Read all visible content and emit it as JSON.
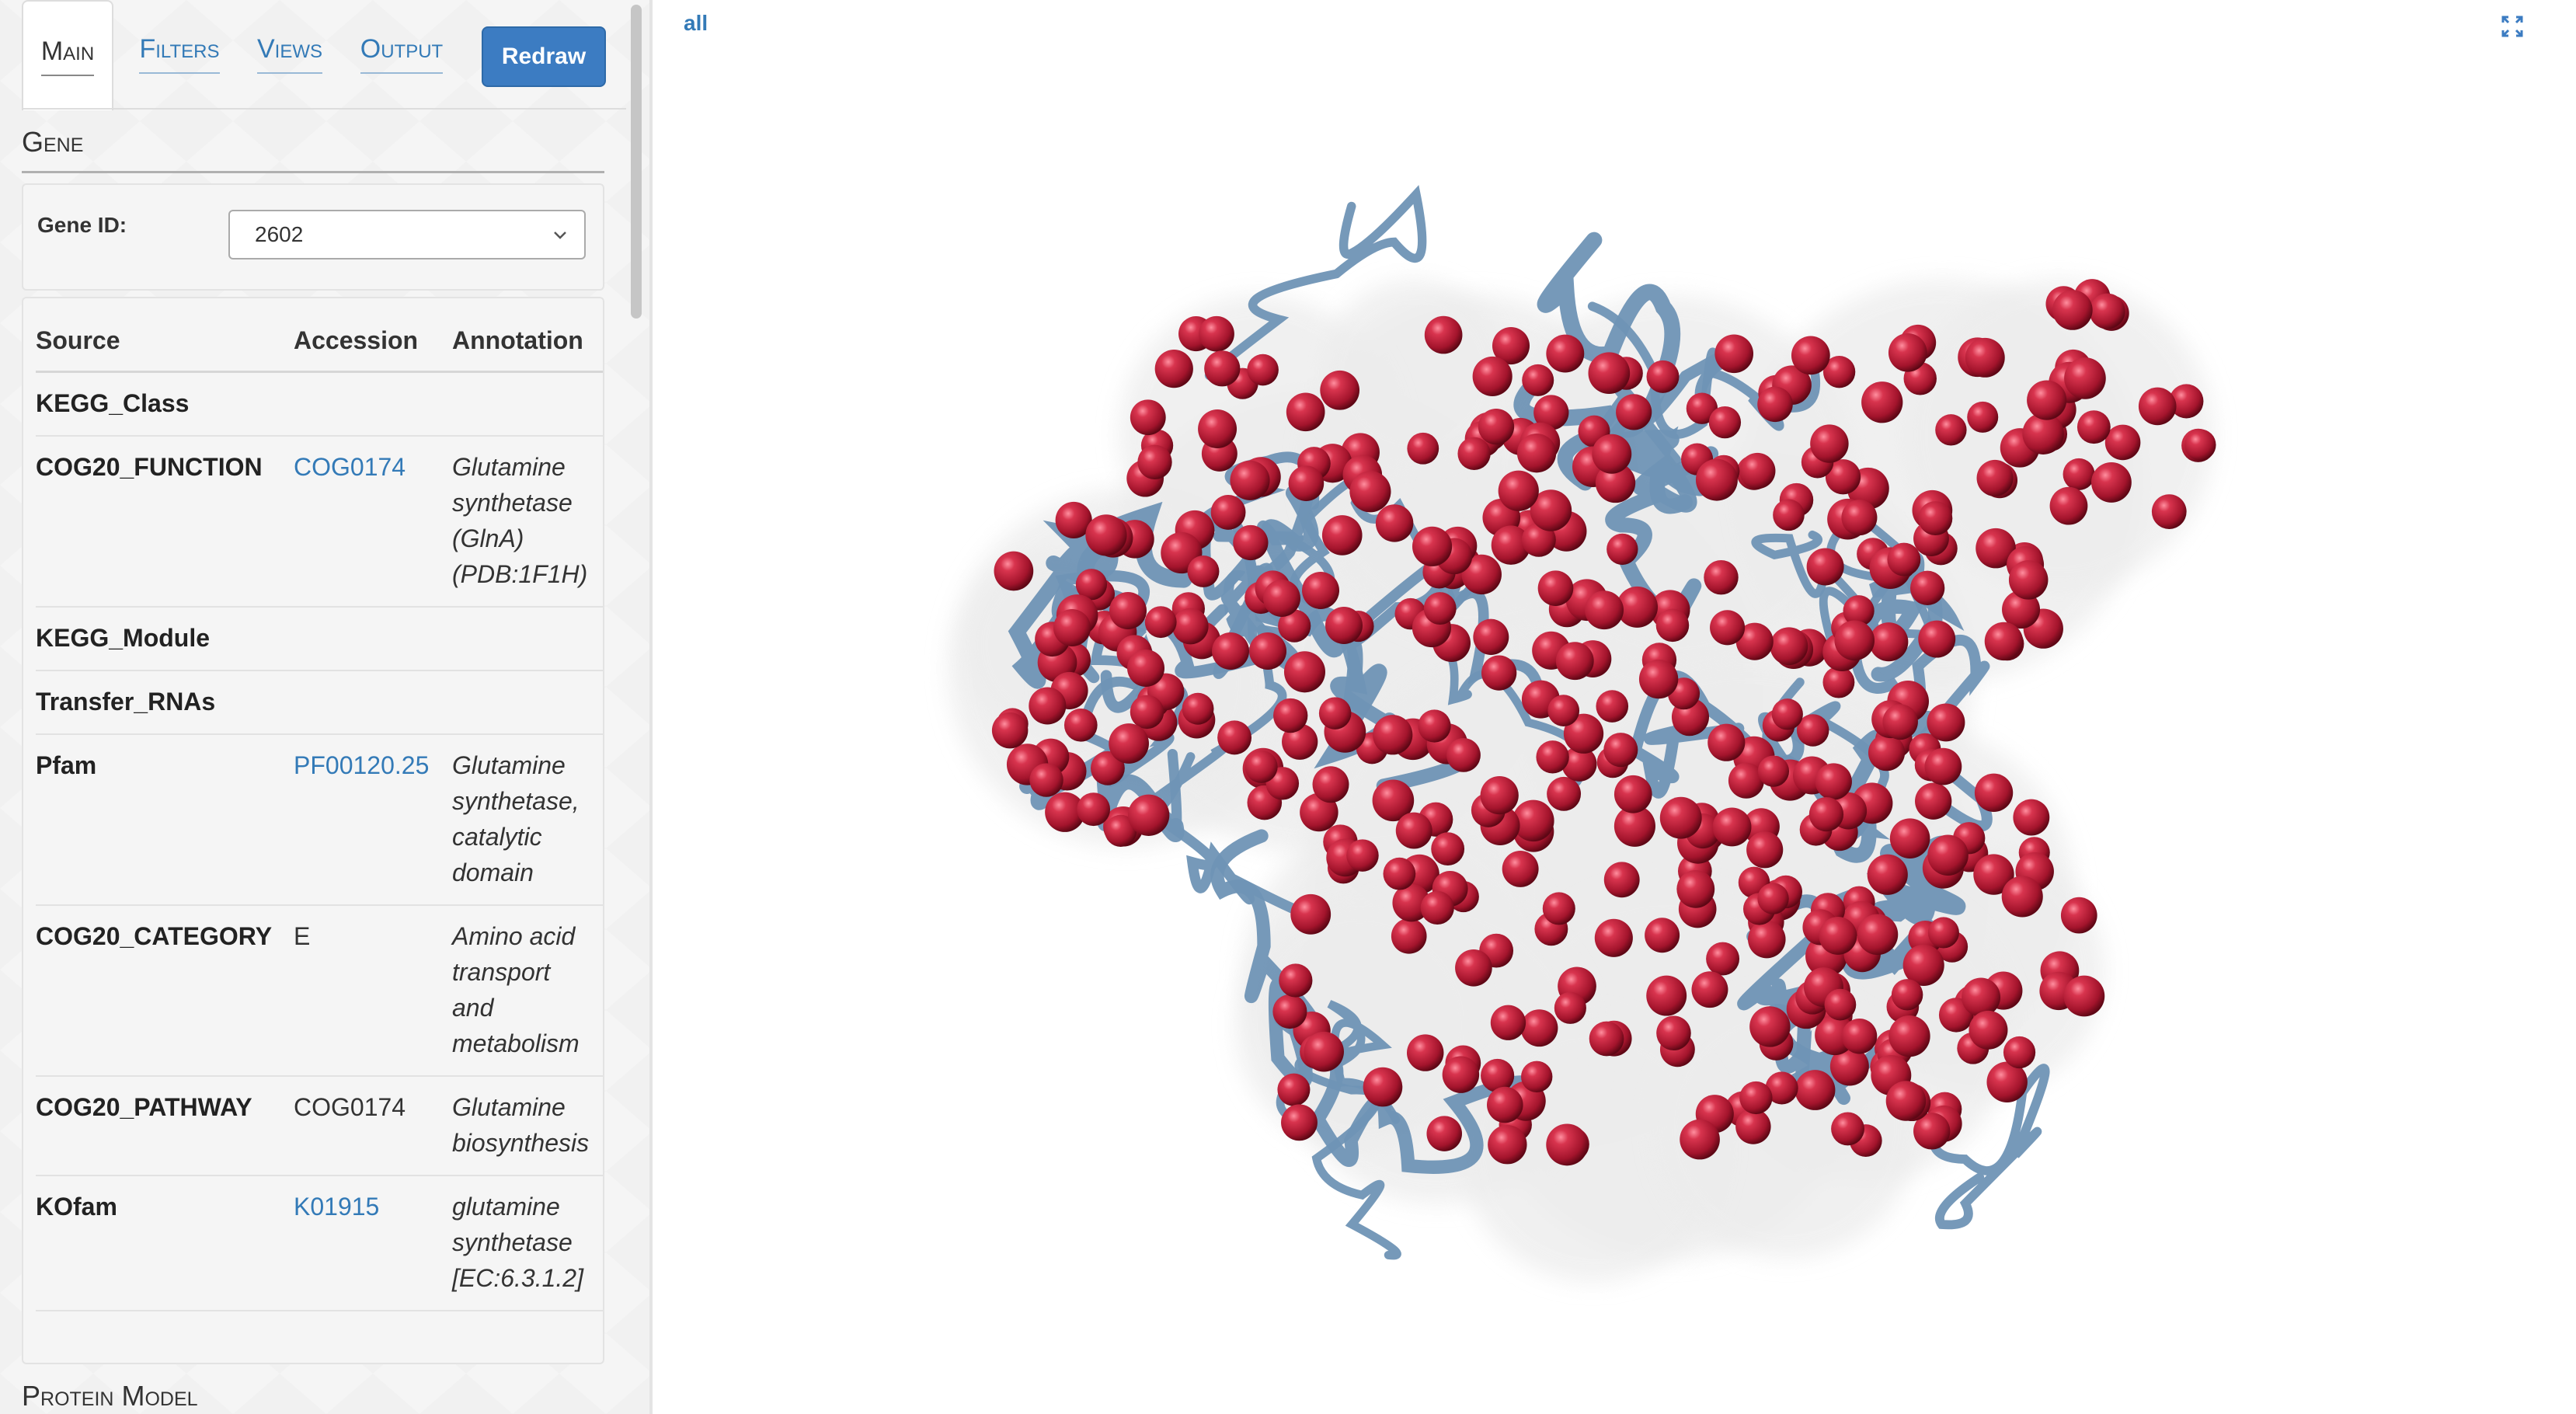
{
  "tabs": [
    {
      "label": "Main",
      "active": true
    },
    {
      "label": "Filters",
      "active": false
    },
    {
      "label": "Views",
      "active": false
    },
    {
      "label": "Output",
      "active": false
    }
  ],
  "redraw_label": "Redraw",
  "gene_section": {
    "title": "Gene",
    "gene_id_label": "Gene ID:",
    "gene_id_value": "2602"
  },
  "annotations": {
    "headers": [
      "Source",
      "Accession",
      "Annotation"
    ],
    "rows": [
      {
        "source": "KEGG_Class",
        "accession": "",
        "annotation": ""
      },
      {
        "source": "COG20_FUNCTION",
        "accession": "COG0174",
        "annotation_lines": [
          "Glutamine",
          "synthetase",
          "(GlnA)",
          "(PDB:1F1H)"
        ]
      },
      {
        "source": "KEGG_Module",
        "accession": "",
        "annotation": ""
      },
      {
        "source": "Transfer_RNAs",
        "accession": "",
        "annotation": ""
      },
      {
        "source": "Pfam",
        "accession": "PF00120.25",
        "annotation_lines": [
          "Glutamine",
          "synthetase,",
          "catalytic",
          "domain"
        ]
      },
      {
        "source": "COG20_CATEGORY",
        "accession": "E",
        "annotation_lines": [
          "Amino acid",
          "transport",
          "and",
          "metabolism"
        ]
      },
      {
        "source": "COG20_PATHWAY",
        "accession": "COG0174",
        "annotation_lines": [
          "Glutamine",
          "biosynthesis"
        ]
      },
      {
        "source": "KOfam",
        "accession": "K01915",
        "annotation_lines": [
          "glutamine",
          "synthetase",
          "[EC:6.3.1.2]"
        ]
      }
    ]
  },
  "protein_section": {
    "title": "Protein Model"
  },
  "viewer": {
    "selection_label": "all",
    "expand_icon": "expand-icon",
    "colors": {
      "atom": "#b51a33",
      "ribbon": "#6f93b5",
      "surface": "#ececec"
    }
  }
}
